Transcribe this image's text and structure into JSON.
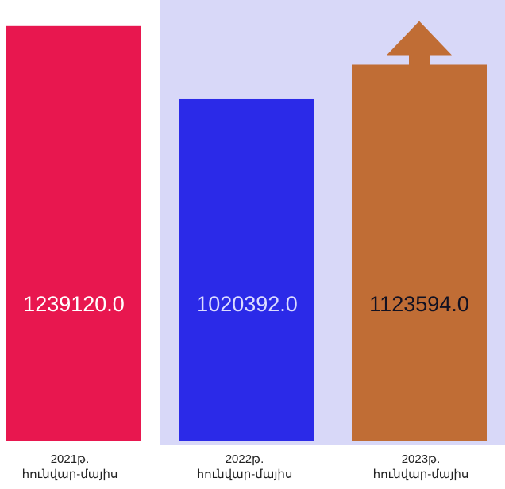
{
  "chart_data": {
    "type": "bar",
    "categories": [
      [
        "2021թ.",
        "հունվար-մայիս"
      ],
      [
        "2022թ.",
        "հունվար-մայիս"
      ],
      [
        "2023թ.",
        "հունվար-մայիս"
      ]
    ],
    "values": [
      1239120.0,
      1020392.0,
      1123594.0
    ],
    "value_labels": [
      "1239120.0",
      "1020392.0",
      "1123594.0"
    ],
    "bar_colors": [
      "#e8174f",
      "#2b2ae8",
      "#c06d35"
    ],
    "value_label_colors": [
      "#ffffff",
      "#dcdcff",
      "#111122"
    ],
    "increase_arrow_color": "#c06d35",
    "background_colors": {
      "page": "#ffffff",
      "panel": "#d8d8f8"
    },
    "ylim": [
      0,
      1260000
    ],
    "grid": false,
    "legend": "none"
  }
}
